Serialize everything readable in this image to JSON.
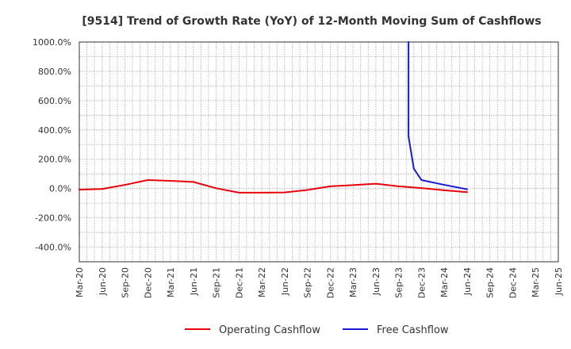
{
  "chart_data": {
    "type": "line",
    "title": "[9514]  Trend of Growth Rate (YoY) of 12-Month Moving Sum of Cashflows",
    "xlabel": "",
    "ylabel": "",
    "ylim": [
      -500,
      1000
    ],
    "ytick_values": [
      -400,
      -200,
      0,
      200,
      400,
      600,
      800,
      1000
    ],
    "ytick_labels": [
      "-400.0%",
      "-200.0%",
      "0.0%",
      "200.0%",
      "400.0%",
      "600.0%",
      "800.0%",
      "1000.0%"
    ],
    "x_range": [
      "2020-03",
      "2025-06"
    ],
    "x_tick_labels": [
      "Mar-20",
      "Jun-20",
      "Sep-20",
      "Dec-20",
      "Mar-21",
      "Jun-21",
      "Sep-21",
      "Dec-21",
      "Mar-22",
      "Jun-22",
      "Sep-22",
      "Dec-22",
      "Mar-23",
      "Jun-23",
      "Sep-23",
      "Dec-23",
      "Mar-24",
      "Jun-24",
      "Sep-24",
      "Dec-24",
      "Mar-25",
      "Jun-25"
    ],
    "grid": true,
    "legend_position": "bottom",
    "series": [
      {
        "name": "Operating Cashflow",
        "color": "#e8000b",
        "points": [
          [
            "2020-03",
            -8
          ],
          [
            "2020-06",
            -3
          ],
          [
            "2020-09",
            25
          ],
          [
            "2020-12",
            58
          ],
          [
            "2021-03",
            52
          ],
          [
            "2021-06",
            45
          ],
          [
            "2021-09",
            2
          ],
          [
            "2021-12",
            -28
          ],
          [
            "2022-03",
            -28
          ],
          [
            "2022-06",
            -27
          ],
          [
            "2022-09",
            -10
          ],
          [
            "2022-12",
            15
          ],
          [
            "2023-03",
            23
          ],
          [
            "2023-06",
            33
          ],
          [
            "2023-09",
            15
          ],
          [
            "2023-12",
            3
          ],
          [
            "2024-03",
            -12
          ],
          [
            "2024-06",
            -25
          ]
        ]
      },
      {
        "name": "Free Cashflow",
        "color": "#1a1ad6",
        "points": [
          [
            "2023-10",
            1000
          ],
          [
            "2023-10",
            355
          ],
          [
            "2023-11",
            135
          ],
          [
            "2023-12",
            58
          ],
          [
            "2024-03",
            25
          ],
          [
            "2024-06",
            -5
          ]
        ]
      }
    ]
  }
}
